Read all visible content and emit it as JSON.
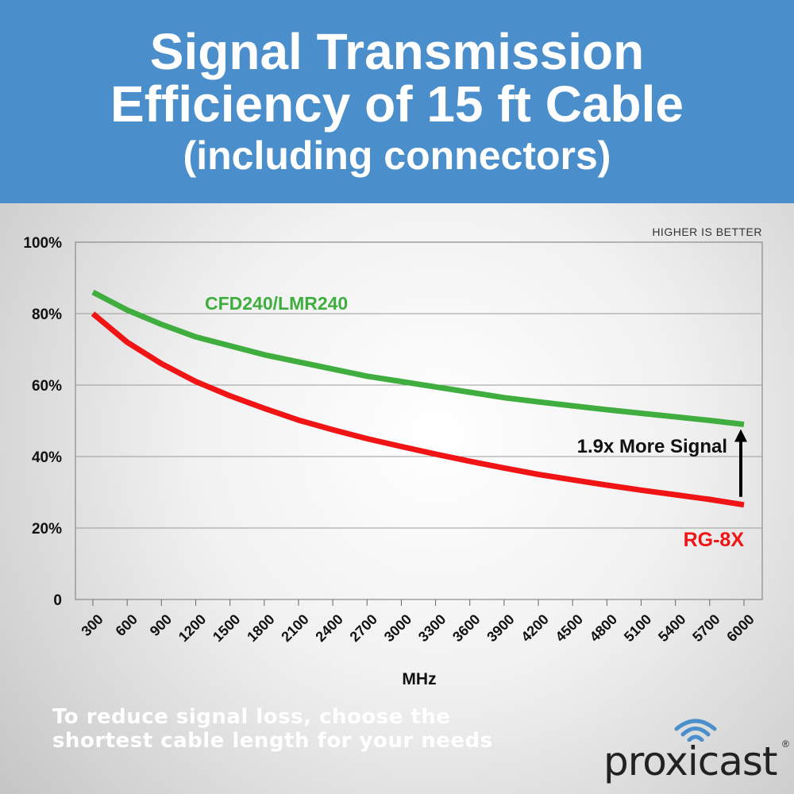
{
  "banner": {
    "line1": "Signal Transmission",
    "line2": "Efficiency of 15 ft Cable",
    "line3": "(including connectors)"
  },
  "chart_data": {
    "type": "line",
    "title": "Signal Transmission Efficiency of 15 ft Cable (including connectors)",
    "xlabel": "MHz",
    "ylabel": "",
    "categories": [
      "300",
      "600",
      "900",
      "1200",
      "1500",
      "1800",
      "2100",
      "2400",
      "2700",
      "3000",
      "3300",
      "3600",
      "3900",
      "4200",
      "4500",
      "4800",
      "5100",
      "5400",
      "5700",
      "6000"
    ],
    "y_ticks": [
      "100%",
      "80%",
      "60%",
      "40%",
      "20%",
      "0"
    ],
    "ylim": [
      0,
      100
    ],
    "grid": true,
    "series": [
      {
        "name": "CFD240/LMR240",
        "color": "#3fae3f",
        "values": [
          86,
          81,
          77,
          73.5,
          71,
          68.5,
          66.5,
          64.5,
          62.5,
          61,
          59.5,
          58,
          56.5,
          55.3,
          54.2,
          53.1,
          52.1,
          51.1,
          50.1,
          49
        ]
      },
      {
        "name": "RG-8X",
        "color": "#f01414",
        "values": [
          80,
          72,
          66,
          61,
          57,
          53.5,
          50.2,
          47.5,
          45,
          42.8,
          40.7,
          38.7,
          36.8,
          35,
          33.5,
          32,
          30.6,
          29.3,
          28,
          26.5
        ]
      }
    ],
    "annotations": {
      "corner": "HIGHER IS BETTER",
      "comparison": "1.9x More Signal"
    }
  },
  "footer": {
    "line1": "To reduce signal loss, choose the",
    "line2": "shortest cable length for your needs"
  },
  "brand": {
    "name": "proxicast",
    "reg": "®",
    "icon": "wifi-icon"
  }
}
